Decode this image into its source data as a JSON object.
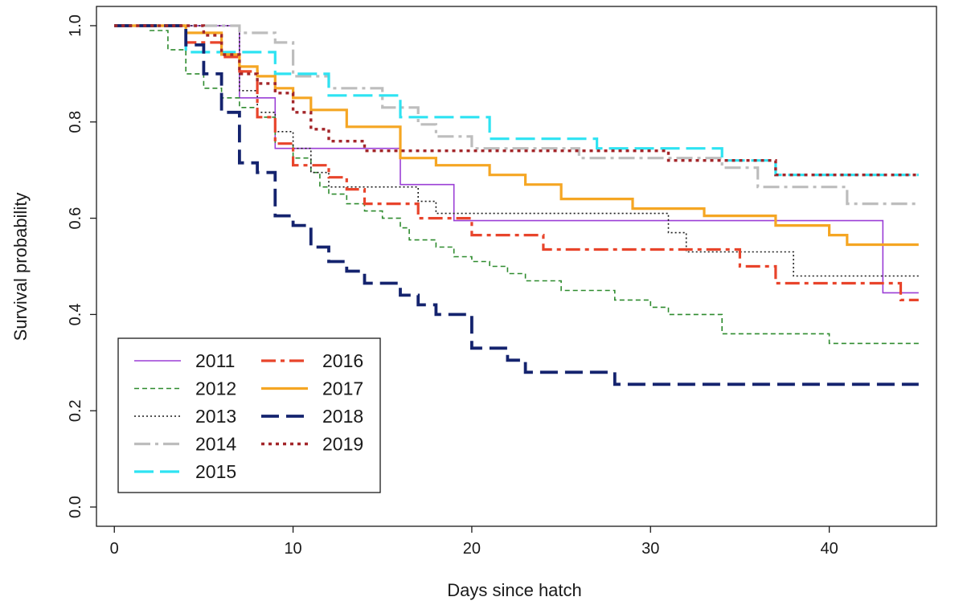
{
  "chart_data": {
    "type": "line",
    "step": true,
    "xlabel": "Days since hatch",
    "ylabel": "Survival probability",
    "xlim": [
      -1,
      46
    ],
    "ylim": [
      -0.04,
      1.04
    ],
    "x_ticks": [
      0,
      10,
      20,
      30,
      40
    ],
    "y_ticks": [
      0.0,
      0.2,
      0.4,
      0.6,
      0.8,
      1.0
    ],
    "y_tick_labels": [
      "0.0",
      "0.2",
      "0.4",
      "0.6",
      "0.8",
      "1.0"
    ],
    "x_tick_labels": [
      "0",
      "10",
      "20",
      "30",
      "40"
    ],
    "grid": false,
    "legend_position": "bottom-left",
    "x_end": 45,
    "series": [
      {
        "name": "2011",
        "color": "#9b3fd6",
        "dash": "solid",
        "width": 1.6,
        "points": [
          [
            0,
            1.0
          ],
          [
            7,
            0.85
          ],
          [
            9,
            0.745
          ],
          [
            16,
            0.67
          ],
          [
            19,
            0.595
          ],
          [
            43,
            0.445
          ]
        ]
      },
      {
        "name": "2012",
        "color": "#2e8b2e",
        "dash": "dashed-short",
        "width": 1.6,
        "points": [
          [
            0,
            1.0
          ],
          [
            2,
            0.99
          ],
          [
            3,
            0.95
          ],
          [
            4,
            0.9
          ],
          [
            5,
            0.87
          ],
          [
            6,
            0.85
          ],
          [
            7,
            0.83
          ],
          [
            8,
            0.81
          ],
          [
            9,
            0.755
          ],
          [
            10,
            0.725
          ],
          [
            11,
            0.695
          ],
          [
            11.5,
            0.665
          ],
          [
            12,
            0.65
          ],
          [
            13,
            0.63
          ],
          [
            14,
            0.615
          ],
          [
            15,
            0.6
          ],
          [
            16,
            0.58
          ],
          [
            16.5,
            0.555
          ],
          [
            18,
            0.54
          ],
          [
            19,
            0.52
          ],
          [
            20,
            0.51
          ],
          [
            21,
            0.5
          ],
          [
            22,
            0.485
          ],
          [
            23,
            0.47
          ],
          [
            25,
            0.45
          ],
          [
            28,
            0.43
          ],
          [
            30,
            0.415
          ],
          [
            31,
            0.4
          ],
          [
            34,
            0.36
          ],
          [
            40,
            0.34
          ]
        ]
      },
      {
        "name": "2013",
        "color": "#1a1a1a",
        "dash": "dotted",
        "width": 1.6,
        "points": [
          [
            0,
            1.0
          ],
          [
            7,
            0.865
          ],
          [
            8,
            0.82
          ],
          [
            9,
            0.78
          ],
          [
            10,
            0.745
          ],
          [
            11,
            0.695
          ],
          [
            12,
            0.665
          ],
          [
            17,
            0.635
          ],
          [
            18,
            0.61
          ],
          [
            31,
            0.57
          ],
          [
            32,
            0.53
          ],
          [
            38,
            0.48
          ]
        ]
      },
      {
        "name": "2014",
        "color": "#bdbdbd",
        "dash": "dash-dot",
        "width": 3.2,
        "points": [
          [
            0,
            1.0
          ],
          [
            7,
            0.985
          ],
          [
            9,
            0.965
          ],
          [
            10,
            0.895
          ],
          [
            12,
            0.87
          ],
          [
            15,
            0.83
          ],
          [
            17,
            0.795
          ],
          [
            18,
            0.77
          ],
          [
            20,
            0.745
          ],
          [
            26,
            0.725
          ],
          [
            34,
            0.705
          ],
          [
            36,
            0.665
          ],
          [
            41,
            0.63
          ]
        ]
      },
      {
        "name": "2015",
        "color": "#2ee3f2",
        "dash": "long-dash",
        "width": 3.2,
        "points": [
          [
            0,
            1.0
          ],
          [
            4,
            0.945
          ],
          [
            9,
            0.9
          ],
          [
            12,
            0.855
          ],
          [
            16,
            0.81
          ],
          [
            21,
            0.765
          ],
          [
            27,
            0.745
          ],
          [
            34,
            0.72
          ],
          [
            37,
            0.69
          ]
        ]
      },
      {
        "name": "2016",
        "color": "#e8442b",
        "dash": "dash-dot-long",
        "width": 3.2,
        "points": [
          [
            0,
            1.0
          ],
          [
            4,
            0.965
          ],
          [
            6,
            0.935
          ],
          [
            7,
            0.905
          ],
          [
            8,
            0.81
          ],
          [
            9,
            0.755
          ],
          [
            10,
            0.71
          ],
          [
            12,
            0.685
          ],
          [
            13,
            0.66
          ],
          [
            14,
            0.63
          ],
          [
            17,
            0.6
          ],
          [
            20,
            0.565
          ],
          [
            24,
            0.535
          ],
          [
            35,
            0.5
          ],
          [
            37,
            0.465
          ],
          [
            44,
            0.43
          ]
        ]
      },
      {
        "name": "2017",
        "color": "#f5a623",
        "dash": "solid",
        "width": 3.2,
        "points": [
          [
            0,
            1.0
          ],
          [
            4,
            0.985
          ],
          [
            6,
            0.94
          ],
          [
            7,
            0.915
          ],
          [
            8,
            0.895
          ],
          [
            9,
            0.87
          ],
          [
            10,
            0.85
          ],
          [
            11,
            0.825
          ],
          [
            13,
            0.79
          ],
          [
            16,
            0.725
          ],
          [
            18,
            0.71
          ],
          [
            21,
            0.69
          ],
          [
            23,
            0.67
          ],
          [
            25,
            0.64
          ],
          [
            29,
            0.62
          ],
          [
            33,
            0.605
          ],
          [
            37,
            0.585
          ],
          [
            40,
            0.565
          ],
          [
            41,
            0.545
          ]
        ]
      },
      {
        "name": "2018",
        "color": "#14236e",
        "dash": "long-dash-bold",
        "width": 3.8,
        "points": [
          [
            0,
            1.0
          ],
          [
            4,
            0.96
          ],
          [
            5,
            0.9
          ],
          [
            6,
            0.82
          ],
          [
            7,
            0.715
          ],
          [
            8,
            0.695
          ],
          [
            9,
            0.605
          ],
          [
            10,
            0.585
          ],
          [
            11,
            0.54
          ],
          [
            12,
            0.51
          ],
          [
            13,
            0.49
          ],
          [
            14,
            0.465
          ],
          [
            16,
            0.44
          ],
          [
            17,
            0.42
          ],
          [
            18,
            0.4
          ],
          [
            20,
            0.33
          ],
          [
            22,
            0.305
          ],
          [
            23,
            0.28
          ],
          [
            28,
            0.255
          ]
        ]
      },
      {
        "name": "2019",
        "color": "#a3262a",
        "dash": "dotted-bold",
        "width": 3.4,
        "points": [
          [
            0,
            1.0
          ],
          [
            5,
            0.98
          ],
          [
            6,
            0.94
          ],
          [
            7,
            0.9
          ],
          [
            8,
            0.88
          ],
          [
            9,
            0.86
          ],
          [
            10,
            0.82
          ],
          [
            11,
            0.785
          ],
          [
            12,
            0.76
          ],
          [
            14,
            0.74
          ],
          [
            31,
            0.72
          ],
          [
            37,
            0.69
          ]
        ]
      }
    ]
  }
}
